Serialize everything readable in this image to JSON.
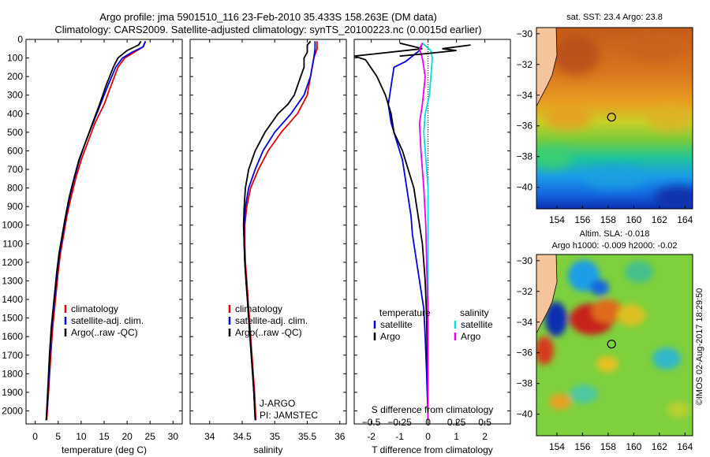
{
  "header": {
    "line1": "Argo profile: jma 5901510_116 23-Feb-2010 35.433S 158.263E (DM data)",
    "line2": "Climatology: CARS2009. Satellite-adjusted climatology: synTS_20100223.nc (0.0015d earlier)"
  },
  "credit": "©IMOS 02-Aug-2017 18:29:50",
  "colors": {
    "clim": "#e00000",
    "sat": "#0000dd",
    "argo": "#000000",
    "sal_sat": "#00dede",
    "sal_argo": "#ee00ee",
    "land": "#f6c49a"
  },
  "chart_data": [
    {
      "type": "line",
      "name_id": "temperature-profile",
      "xlabel": "temperature (deg C)",
      "ylabel": "",
      "xlim": [
        -2,
        32
      ],
      "ylim": [
        2070,
        0
      ],
      "xticks": [
        0,
        5,
        10,
        15,
        20,
        25,
        30
      ],
      "yticks": [
        0,
        100,
        200,
        300,
        400,
        500,
        600,
        700,
        800,
        900,
        1000,
        1100,
        1200,
        1300,
        1400,
        1500,
        1600,
        1700,
        1800,
        1900,
        2000
      ],
      "legend": [
        "climatology",
        "satellite-adj. clim.",
        "Argo(..raw -QC)"
      ],
      "series": [
        {
          "name": "climatology",
          "color": "#e00000",
          "points": [
            [
              24,
              10
            ],
            [
              23.5,
              40
            ],
            [
              21.5,
              70
            ],
            [
              19.5,
              100
            ],
            [
              18,
              150
            ],
            [
              16.5,
              250
            ],
            [
              15,
              350
            ],
            [
              13,
              450
            ],
            [
              11.5,
              550
            ],
            [
              10,
              650
            ],
            [
              8.8,
              750
            ],
            [
              7.8,
              850
            ],
            [
              6.9,
              950
            ],
            [
              6.2,
              1050
            ],
            [
              5.5,
              1150
            ],
            [
              5,
              1250
            ],
            [
              4.4,
              1400
            ],
            [
              3.8,
              1550
            ],
            [
              3.4,
              1700
            ],
            [
              2.9,
              1900
            ],
            [
              2.5,
              2050
            ]
          ]
        },
        {
          "name": "satellite-adj. clim.",
          "color": "#0000dd",
          "points": [
            [
              24,
              10
            ],
            [
              23.5,
              40
            ],
            [
              21,
              70
            ],
            [
              19,
              100
            ],
            [
              17.5,
              150
            ],
            [
              15.8,
              250
            ],
            [
              14.2,
              350
            ],
            [
              12.6,
              450
            ],
            [
              11,
              550
            ],
            [
              9.6,
              650
            ],
            [
              8.5,
              750
            ],
            [
              7.5,
              850
            ],
            [
              6.7,
              950
            ],
            [
              6,
              1050
            ],
            [
              5.3,
              1150
            ],
            [
              4.8,
              1250
            ],
            [
              4.2,
              1400
            ],
            [
              3.6,
              1550
            ],
            [
              3.2,
              1700
            ],
            [
              2.8,
              1900
            ],
            [
              2.4,
              2050
            ]
          ]
        },
        {
          "name": "Argo(..raw -QC)",
          "color": "#000000",
          "points": [
            [
              23,
              10
            ],
            [
              22.5,
              30
            ],
            [
              20,
              60
            ],
            [
              18,
              100
            ],
            [
              17,
              150
            ],
            [
              15.4,
              250
            ],
            [
              14,
              350
            ],
            [
              12.5,
              450
            ],
            [
              11,
              550
            ],
            [
              9.5,
              650
            ],
            [
              8.4,
              750
            ],
            [
              7.4,
              850
            ],
            [
              6.6,
              950
            ],
            [
              5.9,
              1050
            ],
            [
              5.2,
              1150
            ],
            [
              4.7,
              1250
            ],
            [
              4.1,
              1400
            ],
            [
              3.5,
              1550
            ],
            [
              3.1,
              1700
            ],
            [
              2.7,
              1900
            ],
            [
              2.4,
              2050
            ]
          ]
        }
      ]
    },
    {
      "type": "line",
      "name_id": "salinity-profile",
      "xlabel": "salinity",
      "ylabel": "",
      "xlim": [
        33.7,
        36.1
      ],
      "ylim": [
        2070,
        0
      ],
      "xticks": [
        34,
        34.5,
        35,
        35.5,
        36
      ],
      "legend": [
        "climatology",
        "satellite-adj. clim.",
        "Argo(..raw -QC)"
      ],
      "annotations": [
        "J-ARGO",
        "PI: JAMSTEC"
      ],
      "series": [
        {
          "name": "climatology",
          "color": "#e00000",
          "points": [
            [
              35.65,
              10
            ],
            [
              35.65,
              50
            ],
            [
              35.6,
              100
            ],
            [
              35.55,
              200
            ],
            [
              35.5,
              300
            ],
            [
              35.35,
              400
            ],
            [
              35.1,
              500
            ],
            [
              34.9,
              600
            ],
            [
              34.75,
              700
            ],
            [
              34.63,
              800
            ],
            [
              34.57,
              900
            ],
            [
              34.54,
              1000
            ],
            [
              34.54,
              1100
            ],
            [
              34.55,
              1200
            ],
            [
              34.57,
              1300
            ],
            [
              34.59,
              1400
            ],
            [
              34.61,
              1500
            ],
            [
              34.63,
              1600
            ],
            [
              34.65,
              1700
            ],
            [
              34.67,
              1800
            ],
            [
              34.69,
              1900
            ],
            [
              34.71,
              2050
            ]
          ]
        },
        {
          "name": "satellite-adj. clim.",
          "color": "#0000dd",
          "points": [
            [
              35.62,
              10
            ],
            [
              35.62,
              50
            ],
            [
              35.6,
              100
            ],
            [
              35.55,
              200
            ],
            [
              35.45,
              300
            ],
            [
              35.25,
              400
            ],
            [
              35,
              500
            ],
            [
              34.82,
              600
            ],
            [
              34.7,
              700
            ],
            [
              34.6,
              800
            ],
            [
              34.55,
              900
            ],
            [
              34.53,
              1000
            ],
            [
              34.53,
              1100
            ],
            [
              34.54,
              1200
            ],
            [
              34.56,
              1300
            ],
            [
              34.58,
              1400
            ],
            [
              34.6,
              1500
            ],
            [
              34.62,
              1600
            ],
            [
              34.64,
              1700
            ],
            [
              34.66,
              1800
            ],
            [
              34.68,
              1900
            ],
            [
              34.7,
              2050
            ]
          ]
        },
        {
          "name": "Argo(..raw -QC)",
          "color": "#000000",
          "points": [
            [
              35.55,
              10
            ],
            [
              35.5,
              30
            ],
            [
              35.5,
              70
            ],
            [
              35.45,
              100
            ],
            [
              35.45,
              150
            ],
            [
              35.4,
              200
            ],
            [
              35.35,
              250
            ],
            [
              35.3,
              300
            ],
            [
              35.2,
              350
            ],
            [
              35.05,
              400
            ],
            [
              34.85,
              500
            ],
            [
              34.7,
              600
            ],
            [
              34.6,
              700
            ],
            [
              34.55,
              800
            ],
            [
              34.53,
              900
            ],
            [
              34.52,
              1000
            ],
            [
              34.53,
              1100
            ],
            [
              34.54,
              1200
            ],
            [
              34.56,
              1300
            ],
            [
              34.58,
              1400
            ],
            [
              34.6,
              1500
            ],
            [
              34.62,
              1600
            ],
            [
              34.64,
              1700
            ],
            [
              34.66,
              1800
            ],
            [
              34.68,
              1900
            ],
            [
              34.7,
              2050
            ]
          ]
        }
      ]
    },
    {
      "type": "line",
      "name_id": "difference-profile",
      "xlabel": "T difference from climatology",
      "xlabel2": "S difference from climatology",
      "xlim": [
        -2.6,
        2.9
      ],
      "ylim": [
        2070,
        0
      ],
      "xticks": [
        -2,
        -1,
        0,
        1,
        2
      ],
      "sticks": [
        [
          -0.5,
          "−0.5"
        ],
        [
          -0.25,
          "−0.25"
        ],
        [
          0,
          "0"
        ],
        [
          0.25,
          "0.25"
        ],
        [
          0.5,
          "0.5"
        ]
      ],
      "legend_temperature": "temperature",
      "legend_salinity": "salinity",
      "legend_entries": [
        "satellite",
        "Argo",
        "satellite",
        "Argo"
      ],
      "series": [
        {
          "name": "satellite",
          "group": "temperature",
          "color": "#0000dd",
          "points": [
            [
              -0.2,
              20
            ],
            [
              -0.3,
              60
            ],
            [
              -0.8,
              120
            ],
            [
              -1.2,
              150
            ],
            [
              -1.3,
              250
            ],
            [
              -1.4,
              350
            ],
            [
              -1.3,
              450
            ],
            [
              -1.1,
              550
            ],
            [
              -0.9,
              650
            ],
            [
              -0.8,
              750
            ],
            [
              -0.7,
              850
            ],
            [
              -0.6,
              950
            ],
            [
              -0.55,
              1050
            ],
            [
              -0.45,
              1150
            ],
            [
              -0.35,
              1250
            ],
            [
              -0.25,
              1350
            ],
            [
              -0.15,
              1450
            ],
            [
              -0.1,
              1600
            ],
            [
              -0.05,
              1800
            ],
            [
              0,
              2050
            ]
          ]
        },
        {
          "name": "Argo",
          "group": "temperature",
          "color": "#000000",
          "points": [
            [
              -1,
              20
            ],
            [
              -0.2,
              50
            ],
            [
              -2,
              80
            ],
            [
              -2.6,
              90
            ],
            [
              -2.2,
              110
            ],
            [
              -1.8,
              200
            ],
            [
              -1.5,
              300
            ],
            [
              -1.3,
              400
            ],
            [
              -1.2,
              500
            ],
            [
              -0.9,
              600
            ],
            [
              -0.7,
              700
            ],
            [
              -0.5,
              800
            ],
            [
              -0.4,
              900
            ],
            [
              -0.3,
              1000
            ],
            [
              -0.2,
              1100
            ],
            [
              -0.15,
              1200
            ],
            [
              -0.1,
              1300
            ],
            [
              -0.05,
              1500
            ],
            [
              0,
              2050
            ]
          ]
        },
        {
          "name": "satellite",
          "group": "salinity",
          "color": "#00dede",
          "points": [
            [
              -0.2,
              20
            ],
            [
              0.1,
              60
            ],
            [
              0.15,
              100
            ],
            [
              0.1,
              200
            ],
            [
              0.05,
              300
            ],
            [
              -0.1,
              400
            ],
            [
              -0.15,
              500
            ],
            [
              -0.1,
              600
            ],
            [
              -0.05,
              700
            ],
            [
              0,
              800
            ],
            [
              0,
              1000
            ],
            [
              0,
              2050
            ]
          ]
        },
        {
          "name": "Argo",
          "group": "salinity",
          "color": "#ee00ee",
          "points": [
            [
              -0.2,
              20
            ],
            [
              -0.3,
              50
            ],
            [
              -0.2,
              100
            ],
            [
              -0.1,
              200
            ],
            [
              -0.2,
              350
            ],
            [
              -0.3,
              450
            ],
            [
              -0.25,
              600
            ],
            [
              -0.15,
              800
            ],
            [
              -0.08,
              1000
            ],
            [
              -0.05,
              1200
            ],
            [
              0,
              1500
            ],
            [
              0,
              2050
            ]
          ]
        },
        {
          "name": "",
          "group": "temperature",
          "color": "#000000",
          "points": [
            [
              1.5,
              30
            ],
            [
              0.5,
              50
            ],
            [
              1,
              60
            ],
            [
              -0.3,
              80
            ],
            [
              -1,
              90
            ]
          ]
        }
      ]
    },
    {
      "type": "heatmap",
      "name_id": "sst-map",
      "title": "sat. SST: 23.4  Argo: 23.8",
      "xlim": [
        152.4,
        164.6
      ],
      "ylim": [
        -41.4,
        -29.6
      ],
      "xticks": [
        154,
        156,
        158,
        160,
        162,
        164
      ],
      "yticks": [
        -30,
        -32,
        -34,
        -36,
        -38,
        -40
      ],
      "marker": [
        158.263,
        -35.433
      ]
    },
    {
      "type": "heatmap",
      "name_id": "sla-map",
      "title": "Altim. SLA: -0.018",
      "subtitle": "Argo h1000: -0.009 h2000: -0.02",
      "xlim": [
        152.4,
        164.6
      ],
      "ylim": [
        -41.4,
        -29.6
      ],
      "xticks": [
        154,
        156,
        158,
        160,
        162,
        164
      ],
      "yticks": [
        -30,
        -32,
        -34,
        -36,
        -38,
        -40
      ],
      "marker": [
        158.263,
        -35.433
      ]
    }
  ]
}
